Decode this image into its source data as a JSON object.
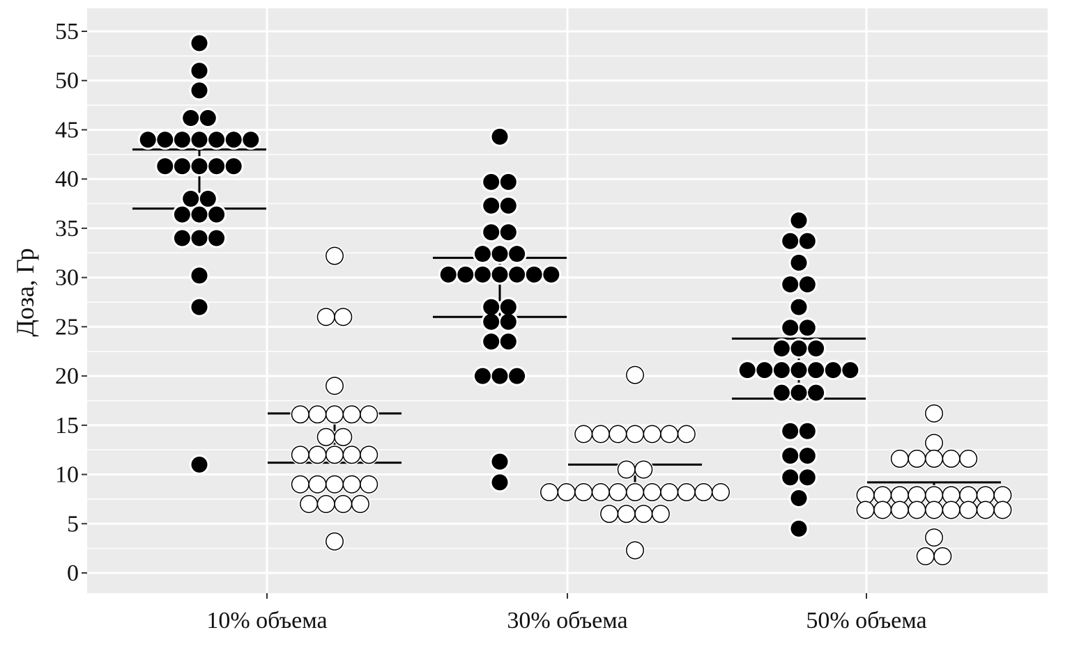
{
  "chart_data": {
    "type": "scatter",
    "subtype": "dotplot",
    "title": "",
    "xlabel": "",
    "ylabel": "Доза, Гр",
    "ylim": [
      0,
      55
    ],
    "yticks": [
      0,
      5,
      10,
      15,
      20,
      25,
      30,
      35,
      40,
      45,
      50,
      55
    ],
    "categories": [
      "10% объема",
      "30% объема",
      "50% объема"
    ],
    "grid": true,
    "legend": "none",
    "colors": {
      "panel": "#ebebeb",
      "grid": "#ffffff",
      "filled": "#000000",
      "open": "#ffffff",
      "line": "#000000"
    },
    "series": [
      {
        "marker": "filled",
        "groups": [
          {
            "category": "10% объема",
            "values": [
              53.8,
              51,
              49,
              46.2,
              46.2,
              44,
              44,
              44,
              44,
              44,
              44,
              44,
              41.3,
              41.3,
              41.3,
              41.3,
              41.3,
              38,
              38,
              36.4,
              36.4,
              36.4,
              34,
              34,
              34,
              30.2,
              27,
              11
            ],
            "upper": 43,
            "lower": 37
          },
          {
            "category": "30% объема",
            "values": [
              44.3,
              39.7,
              39.7,
              37.3,
              37.3,
              34.6,
              34.6,
              32.4,
              32.4,
              32.4,
              30.3,
              30.3,
              30.3,
              30.3,
              30.3,
              30.3,
              30.3,
              27,
              27,
              25.5,
              25.5,
              23.5,
              23.5,
              20,
              20,
              20,
              11.3,
              9.2
            ],
            "upper": 32,
            "lower": 26
          },
          {
            "category": "50% объема",
            "values": [
              35.8,
              33.7,
              33.7,
              31.5,
              29.3,
              29.3,
              27,
              24.9,
              24.9,
              22.8,
              22.8,
              22.8,
              20.6,
              20.6,
              20.6,
              20.6,
              20.6,
              20.6,
              20.6,
              18.3,
              18.3,
              18.3,
              14.4,
              14.4,
              11.9,
              11.9,
              9.7,
              9.7,
              7.6,
              4.5
            ],
            "upper": 23.8,
            "lower": 17.7
          }
        ]
      },
      {
        "marker": "open",
        "groups": [
          {
            "category": "10% объема",
            "values": [
              32.2,
              26,
              26,
              19,
              16.1,
              16.1,
              16.1,
              16.1,
              16.1,
              13.8,
              13.8,
              12,
              12,
              12,
              12,
              12,
              9,
              9,
              9,
              9,
              9,
              7,
              7,
              7,
              7,
              3.2
            ],
            "upper": 16.2,
            "lower": 11.2
          },
          {
            "category": "30% объема",
            "values": [
              20.1,
              14.1,
              14.1,
              14.1,
              14.1,
              14.1,
              14.1,
              14.1,
              10.5,
              10.5,
              8.2,
              8.2,
              8.2,
              8.2,
              8.2,
              8.2,
              8.2,
              8.2,
              8.2,
              8.2,
              8.2,
              6,
              6,
              6,
              6,
              2.3
            ],
            "upper": 11,
            "lower": 8.3
          },
          {
            "category": "50% объема",
            "values": [
              16.2,
              13.2,
              11.6,
              11.6,
              11.6,
              11.6,
              11.6,
              7.9,
              7.9,
              7.9,
              7.9,
              7.9,
              7.9,
              7.9,
              7.9,
              7.9,
              6.4,
              6.4,
              6.4,
              6.4,
              6.4,
              6.4,
              6.4,
              6.4,
              6.4,
              3.6,
              1.7,
              1.7
            ],
            "upper": 9.2,
            "lower": 6.7
          }
        ]
      }
    ]
  }
}
